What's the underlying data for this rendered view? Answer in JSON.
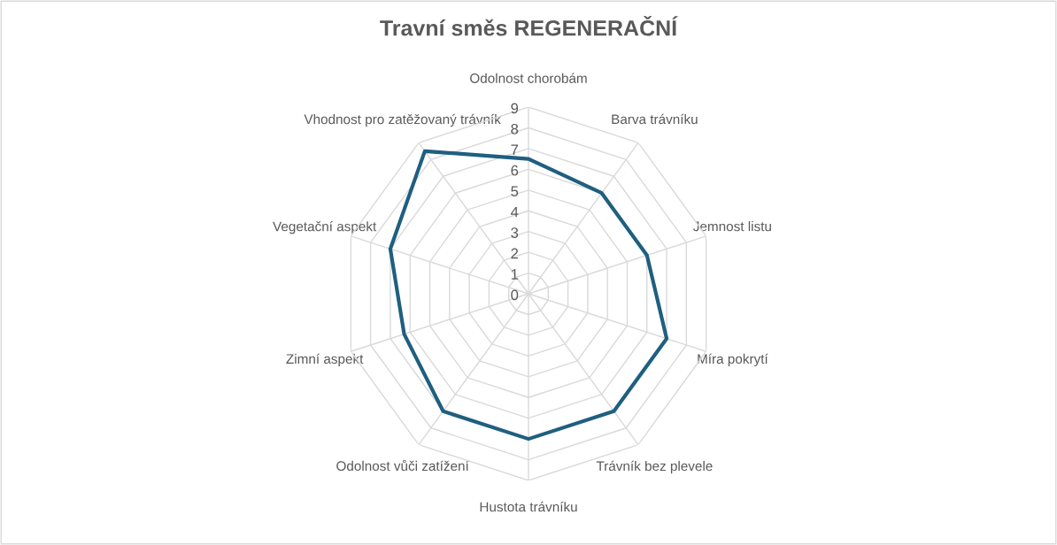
{
  "chart_data": {
    "type": "radar",
    "title": "Travní směs REGENERAČNÍ",
    "categories": [
      "Odolnost chorobám",
      "Barva trávníku",
      "Jemnost listu",
      "Míra pokrytí",
      "Trávník bez plevele",
      "Hustota trávníku",
      "Odolnost vůči zatížení",
      "Zimní aspekt",
      "Vegetační aspekt",
      "Vhodnost pro zatěžovaný trávník"
    ],
    "series": [
      {
        "color": "#1f5f80",
        "values": [
          6.5,
          6,
          6,
          7,
          7,
          7,
          7,
          6.3,
          7,
          8.5
        ]
      }
    ],
    "ylim": [
      0,
      9
    ],
    "yticks": [
      0,
      1,
      2,
      3,
      4,
      5,
      6,
      7,
      8,
      9
    ],
    "grid": true
  }
}
